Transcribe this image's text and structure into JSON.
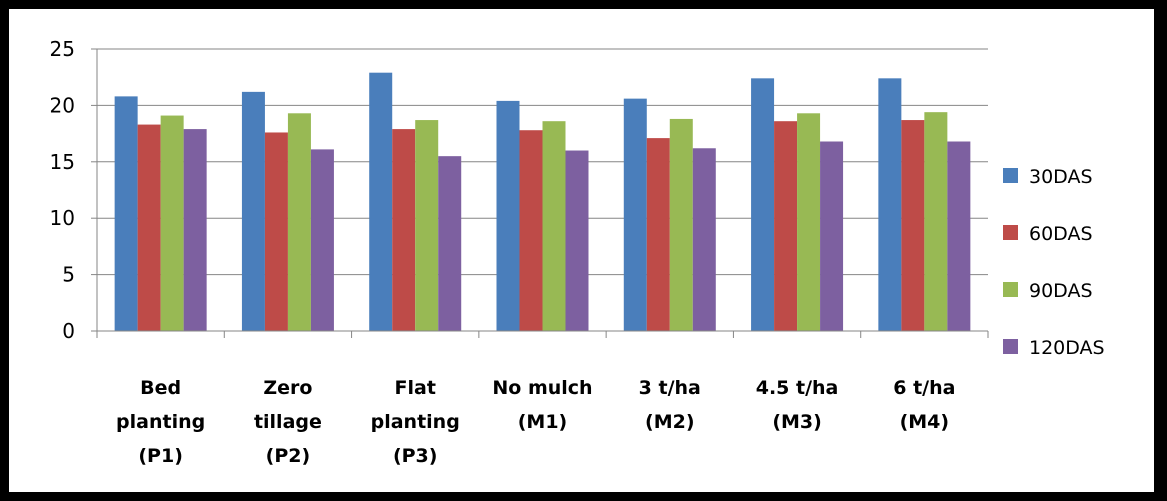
{
  "chart_data": {
    "type": "bar",
    "title": "",
    "xlabel": "",
    "ylabel": "",
    "ylim": [
      0,
      25
    ],
    "yticks": [
      0,
      5,
      10,
      15,
      20,
      25
    ],
    "grid": true,
    "legend_position": "right",
    "categories": [
      [
        "Bed",
        "planting",
        "(P1)"
      ],
      [
        "Zero",
        "tillage",
        "(P2)"
      ],
      [
        "Flat",
        "planting",
        "(P3)"
      ],
      [
        "No mulch",
        "(M1)"
      ],
      [
        "3 t/ha",
        "(M2)"
      ],
      [
        "4.5 t/ha",
        "(M3)"
      ],
      [
        "6 t/ha",
        "(M4)"
      ]
    ],
    "series": [
      {
        "name": "30DAS",
        "color": "#4a7ebb",
        "values": [
          20.8,
          21.2,
          22.9,
          20.4,
          20.6,
          22.4,
          22.4
        ]
      },
      {
        "name": "60DAS",
        "color": "#be4b48",
        "values": [
          18.3,
          17.6,
          17.9,
          17.8,
          17.1,
          18.6,
          18.7
        ]
      },
      {
        "name": "90DAS",
        "color": "#98b954",
        "values": [
          19.1,
          19.3,
          18.7,
          18.6,
          18.8,
          19.3,
          19.4
        ]
      },
      {
        "name": "120DAS",
        "color": "#7d60a0",
        "values": [
          17.9,
          16.1,
          15.5,
          16.0,
          16.2,
          16.8,
          16.8
        ]
      }
    ]
  }
}
